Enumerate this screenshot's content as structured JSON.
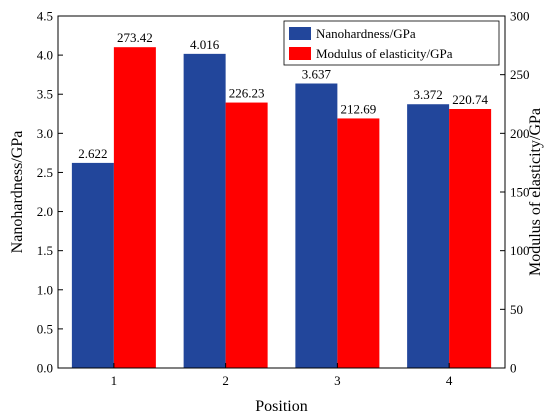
{
  "chart_data": {
    "type": "bar",
    "categories": [
      "1",
      "2",
      "3",
      "4"
    ],
    "xlabel": "Position",
    "series": [
      {
        "name": "Nanohardness/GPa",
        "axis": "left",
        "color": "#22469b",
        "values": [
          2.622,
          4.016,
          3.637,
          3.372
        ],
        "labels": [
          "2.622",
          "4.016",
          "3.637",
          "3.372"
        ]
      },
      {
        "name": "Modulus of elasticity/GPa",
        "axis": "right",
        "color": "#ff0000",
        "values": [
          273.42,
          226.23,
          212.69,
          220.74
        ],
        "labels": [
          "273.42",
          "226.23",
          "212.69",
          "220.74"
        ]
      }
    ],
    "y_left": {
      "label": "Nanohardness/GPa",
      "ylim": [
        0,
        4.5
      ],
      "ticks": [
        "0.0",
        "0.5",
        "1.0",
        "1.5",
        "2.0",
        "2.5",
        "3.0",
        "3.5",
        "4.0",
        "4.5"
      ]
    },
    "y_right": {
      "label": "Modulus of elasticity/GPa",
      "ylim": [
        0,
        300
      ],
      "ticks": [
        "0",
        "50",
        "100",
        "150",
        "200",
        "250",
        "300"
      ]
    },
    "legend_position": "top-right",
    "grid": false
  }
}
